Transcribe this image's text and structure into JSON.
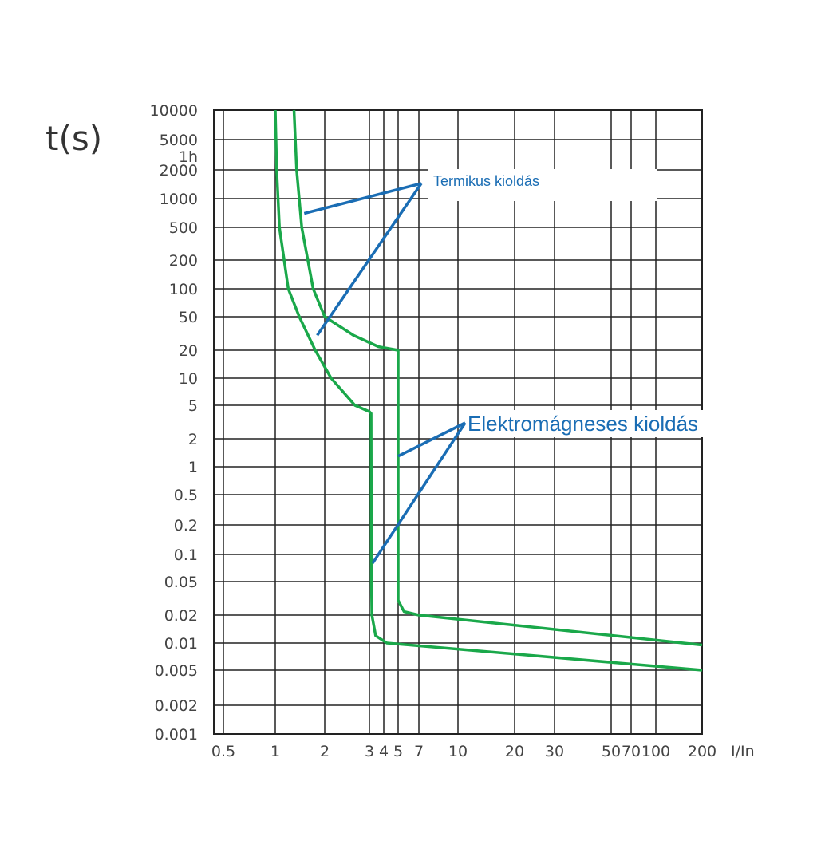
{
  "chart_data": {
    "type": "line",
    "ylabel": "t(s)",
    "xlabel": "I/In",
    "x_scale": "log",
    "y_scale": "log",
    "grid": true,
    "xlim": [
      0.5,
      200
    ],
    "ylim": [
      0.001,
      10000
    ],
    "x_ticks": [
      0.5,
      1,
      2,
      3,
      4,
      5,
      7,
      10,
      20,
      30,
      50,
      70,
      100,
      200
    ],
    "x_tick_labels": [
      "0.5",
      "1",
      "2",
      "3",
      "4",
      "5",
      "7",
      "10",
      "20",
      "30",
      "50",
      "70",
      "100",
      "200"
    ],
    "y_ticks": [
      10000,
      5000,
      2000,
      1000,
      500,
      200,
      100,
      50,
      20,
      10,
      5,
      2,
      1,
      0.5,
      0.2,
      0.1,
      0.05,
      0.02,
      0.01,
      0.005,
      0.002,
      0.001
    ],
    "y_tick_labels": [
      "10000",
      "5000",
      "2000",
      "1000",
      "500",
      "200",
      "100",
      "50",
      "20",
      "10",
      "5",
      "2",
      "1",
      "0.5",
      "0.2",
      "0.1",
      "0.05",
      "0.02",
      "0.01",
      "0.005",
      "0.002",
      "0.001"
    ],
    "y_extra_label": "1h",
    "series": [
      {
        "values": [
          [
            1,
            10000
          ],
          [
            1.02,
            2000
          ],
          [
            1.06,
            500
          ],
          [
            1.2,
            100
          ],
          [
            1.4,
            50
          ],
          [
            1.75,
            20
          ],
          [
            2.12,
            10
          ],
          [
            2.63,
            5
          ],
          [
            3,
            4.2
          ],
          [
            3.1,
            4
          ],
          [
            3.12,
            0.05
          ],
          [
            3.15,
            0.02
          ],
          [
            3.4,
            0.012
          ],
          [
            4.2,
            0.01
          ],
          [
            200,
            0.005
          ]
        ]
      },
      {
        "values": [
          [
            1.3,
            10000
          ],
          [
            1.35,
            2000
          ],
          [
            1.45,
            500
          ],
          [
            1.7,
            100
          ],
          [
            2,
            50
          ],
          [
            2.6,
            30
          ],
          [
            3.6,
            22
          ],
          [
            5,
            20
          ],
          [
            5,
            0.03
          ],
          [
            5.5,
            0.022
          ],
          [
            7,
            0.02
          ],
          [
            200,
            0.0095
          ]
        ]
      }
    ],
    "line_color": "#1aa84a",
    "annotation_color": "#1a6db4",
    "annotations": [
      {
        "text": "Termikus kioldás",
        "points_to": [
          [
            1.5,
            700
          ],
          [
            1.8,
            30
          ]
        ]
      },
      {
        "text": "Elektromágneses kioldás",
        "points_to": [
          [
            5,
            1.3
          ],
          [
            3.2,
            0.08
          ]
        ]
      }
    ]
  }
}
